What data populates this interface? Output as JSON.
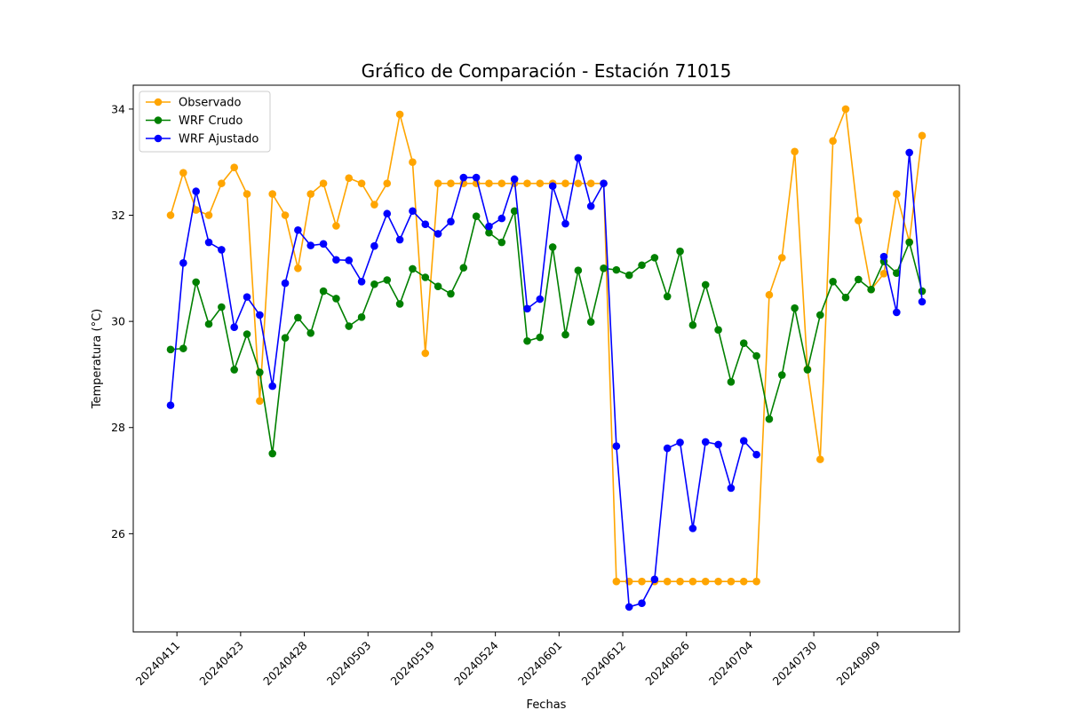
{
  "chart_data": {
    "type": "line",
    "title": "Gráfico de Comparación - Estación 71015",
    "xlabel": "Fechas",
    "ylabel": "Temperatura (°C)",
    "ylim": [
      24.15,
      34.45
    ],
    "yticks": [
      26,
      28,
      30,
      32,
      34
    ],
    "xtick_labels": [
      "20240411",
      "20240423",
      "20240428",
      "20240503",
      "20240519",
      "20240524",
      "20240601",
      "20240612",
      "20240626",
      "20240704",
      "20240730",
      "20240909"
    ],
    "xtick_positions": [
      0.5,
      5.5,
      10.5,
      15.5,
      20.5,
      25.5,
      30.5,
      35.5,
      40.5,
      45.5,
      50.5,
      55.5
    ],
    "grid": false,
    "legend_position": "top-left",
    "series": [
      {
        "name": "Observado",
        "color": "#FFA500",
        "values": [
          32.0,
          32.8,
          32.1,
          32.0,
          32.6,
          32.9,
          32.4,
          28.5,
          32.4,
          32.0,
          31.0,
          32.4,
          32.6,
          31.8,
          32.7,
          32.6,
          32.2,
          32.6,
          33.9,
          33.0,
          29.4,
          32.6,
          32.6,
          32.6,
          32.6,
          32.6,
          32.6,
          32.6,
          32.6,
          32.6,
          32.6,
          32.6,
          32.6,
          32.6,
          32.6,
          25.1,
          25.1,
          25.1,
          25.1,
          25.1,
          25.1,
          25.1,
          25.1,
          25.1,
          25.1,
          25.1,
          25.1,
          30.5,
          31.2,
          33.2,
          29.1,
          27.4,
          33.4,
          34.0,
          31.9,
          30.6,
          30.9,
          32.4,
          31.5,
          33.5
        ]
      },
      {
        "name": "WRF Crudo",
        "color": "#008000",
        "values": [
          29.47,
          29.49,
          30.74,
          29.95,
          30.27,
          29.09,
          29.76,
          29.04,
          27.51,
          29.69,
          30.07,
          29.78,
          30.57,
          30.43,
          29.91,
          30.08,
          30.7,
          30.78,
          30.33,
          30.99,
          30.83,
          30.66,
          30.52,
          31.01,
          31.98,
          31.67,
          31.49,
          32.08,
          29.63,
          29.7,
          31.4,
          29.75,
          30.96,
          29.99,
          31.0,
          30.97,
          30.87,
          31.06,
          31.2,
          30.47,
          31.32,
          29.93,
          30.69,
          29.84,
          28.86,
          29.59,
          29.35,
          28.16,
          28.99,
          30.25,
          29.09,
          30.12,
          30.75,
          30.45,
          30.79,
          30.6,
          31.13,
          30.91,
          31.49,
          30.57
        ]
      },
      {
        "name": "WRF Ajustado",
        "color": "#0000FF",
        "values": [
          28.42,
          31.1,
          32.45,
          31.49,
          31.35,
          29.89,
          30.46,
          30.12,
          28.78,
          30.72,
          31.72,
          31.43,
          31.46,
          31.16,
          31.15,
          30.75,
          31.42,
          32.03,
          31.54,
          32.08,
          31.83,
          31.65,
          31.88,
          32.71,
          32.71,
          31.79,
          31.94,
          32.68,
          30.24,
          30.42,
          32.55,
          31.84,
          33.08,
          32.17,
          32.6,
          27.65,
          24.62,
          24.69,
          25.14,
          27.61,
          27.72,
          26.1,
          27.73,
          27.68,
          26.86,
          27.75,
          27.49,
          null,
          null,
          null,
          null,
          null,
          null,
          null,
          null,
          null,
          31.22,
          30.17,
          33.18,
          30.37
        ]
      }
    ]
  }
}
